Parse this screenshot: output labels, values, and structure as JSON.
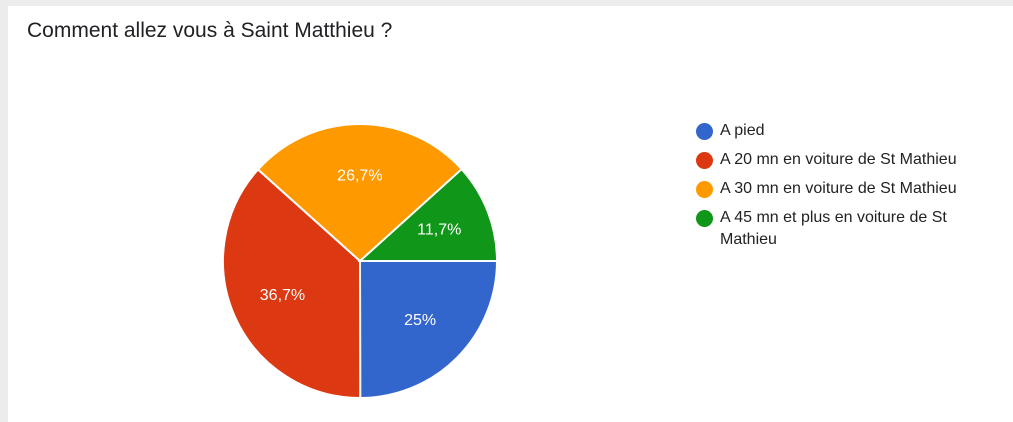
{
  "chart_data": {
    "type": "pie",
    "title": "Comment allez vous à Saint Matthieu ?",
    "slices": [
      {
        "name": "A pied",
        "value": 25,
        "label": "25%",
        "color": "#3366cc"
      },
      {
        "name": "A 20 mn en voiture de St Mathieu",
        "value": 36.7,
        "label": "36,7%",
        "color": "#dc3912"
      },
      {
        "name": "A 30 mn en voiture de St Mathieu",
        "value": 26.7,
        "label": "26,7%",
        "color": "#ff9900"
      },
      {
        "name": "A 45 mn et plus en voiture de St Mathieu",
        "value": 11.7,
        "label": "11,7%",
        "color": "#109618"
      }
    ],
    "legend_position": "right"
  }
}
